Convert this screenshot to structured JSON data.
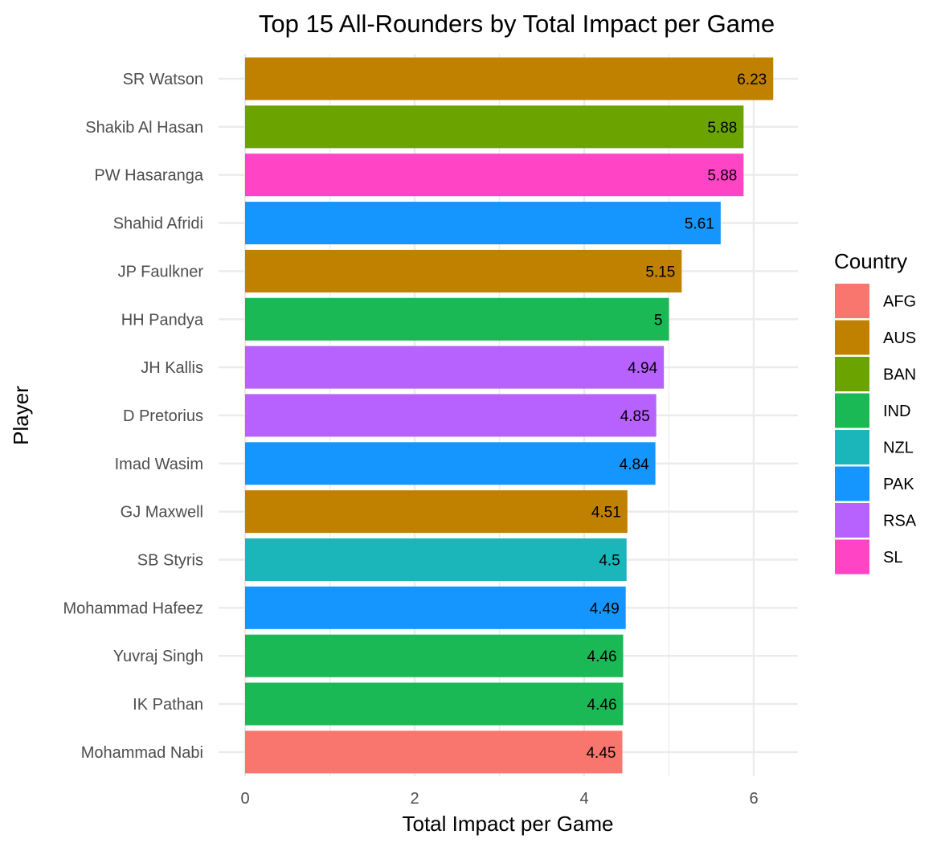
{
  "chart_data": {
    "type": "bar",
    "orientation": "horizontal",
    "title": "Top 15 All-Rounders by Total Impact per Game",
    "xlabel": "Total Impact per Game",
    "ylabel": "Player",
    "xlim": [
      0,
      6.5
    ],
    "x_ticks": [
      0,
      2,
      4,
      6
    ],
    "grid": true,
    "legend": {
      "title": "Country",
      "position": "right",
      "entries": [
        {
          "label": "AFG",
          "color": "#F8766D"
        },
        {
          "label": "AUS",
          "color": "#C08000"
        },
        {
          "label": "BAN",
          "color": "#6BA300"
        },
        {
          "label": "IND",
          "color": "#1BB856"
        },
        {
          "label": "NZL",
          "color": "#1AB6BA"
        },
        {
          "label": "PAK",
          "color": "#1596FF"
        },
        {
          "label": "RSA",
          "color": "#B762FF"
        },
        {
          "label": "SL",
          "color": "#FF45C5"
        }
      ]
    },
    "bars": [
      {
        "player": "SR Watson",
        "country": "AUS",
        "value": 6.23,
        "label": "6.23"
      },
      {
        "player": "Shakib Al Hasan",
        "country": "BAN",
        "value": 5.88,
        "label": "5.88"
      },
      {
        "player": "PW Hasaranga",
        "country": "SL",
        "value": 5.88,
        "label": "5.88"
      },
      {
        "player": "Shahid Afridi",
        "country": "PAK",
        "value": 5.61,
        "label": "5.61"
      },
      {
        "player": "JP Faulkner",
        "country": "AUS",
        "value": 5.15,
        "label": "5.15"
      },
      {
        "player": "HH Pandya",
        "country": "IND",
        "value": 5.0,
        "label": "5"
      },
      {
        "player": "JH Kallis",
        "country": "RSA",
        "value": 4.94,
        "label": "4.94"
      },
      {
        "player": "D Pretorius",
        "country": "RSA",
        "value": 4.85,
        "label": "4.85"
      },
      {
        "player": "Imad Wasim",
        "country": "PAK",
        "value": 4.84,
        "label": "4.84"
      },
      {
        "player": "GJ Maxwell",
        "country": "AUS",
        "value": 4.51,
        "label": "4.51"
      },
      {
        "player": "SB Styris",
        "country": "NZL",
        "value": 4.5,
        "label": "4.5"
      },
      {
        "player": "Mohammad Hafeez",
        "country": "PAK",
        "value": 4.49,
        "label": "4.49"
      },
      {
        "player": "Yuvraj Singh",
        "country": "IND",
        "value": 4.46,
        "label": "4.46"
      },
      {
        "player": "IK Pathan",
        "country": "IND",
        "value": 4.46,
        "label": "4.46"
      },
      {
        "player": "Mohammad Nabi",
        "country": "AFG",
        "value": 4.45,
        "label": "4.45"
      }
    ]
  }
}
